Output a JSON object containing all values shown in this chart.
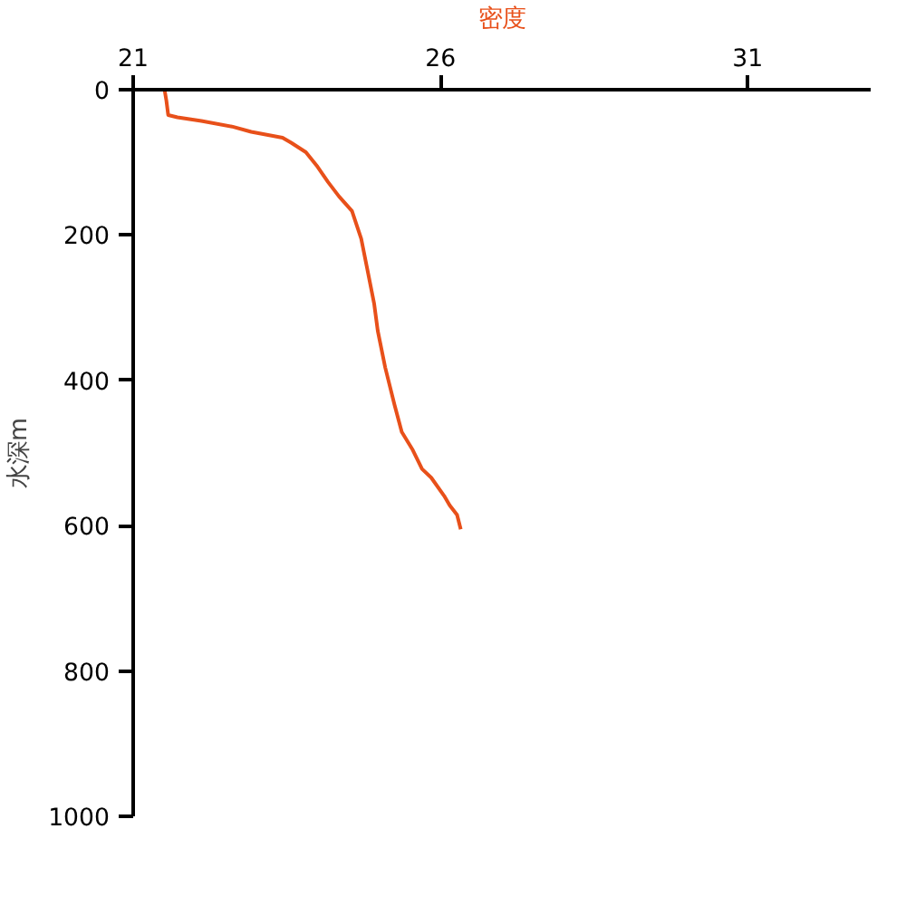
{
  "chart_data": {
    "type": "line",
    "xlabel": "密度",
    "ylabel": "水深m",
    "xlim": [
      21,
      33
    ],
    "xticks": [
      21,
      26,
      31
    ],
    "ylim": [
      1000,
      0
    ],
    "yticks": [
      0,
      200,
      400,
      600,
      800,
      1000
    ],
    "grid": false,
    "marker": "none",
    "line_style": "solid",
    "series": [
      {
        "color": "#e8501a",
        "x": [
          21.51,
          21.54,
          21.57,
          21.72,
          22.11,
          22.62,
          22.92,
          23.43,
          23.57,
          23.81,
          24.0,
          24.17,
          24.35,
          24.56,
          24.71,
          24.8,
          24.92,
          24.98,
          25.1,
          25.25,
          25.37,
          25.55,
          25.7,
          25.85,
          26.06,
          26.15,
          26.27,
          26.33
        ],
        "values": [
          0,
          15,
          35,
          38,
          43,
          51,
          58,
          66,
          73,
          86,
          106,
          127,
          147,
          167,
          205,
          243,
          294,
          332,
          382,
          433,
          471,
          496,
          522,
          534,
          559,
          572,
          585,
          605
        ]
      }
    ]
  }
}
